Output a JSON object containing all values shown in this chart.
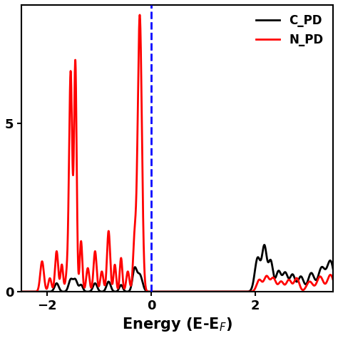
{
  "title": "",
  "xlabel": "Energy (E-E$_F$)",
  "ylabel": "",
  "xlim": [
    -2.5,
    3.5
  ],
  "ylim": [
    0,
    8.5
  ],
  "yticks": [
    0,
    5
  ],
  "xticks": [
    -2,
    0,
    2
  ],
  "vline_x": 0,
  "vline_color": "blue",
  "vline_style": "--",
  "c_pdos_color": "black",
  "n_pdos_color": "red",
  "c_label": "C_PD",
  "n_label": "N_PD",
  "legend_loc": "upper right",
  "linewidth": 2.0,
  "n_peaks_left": [
    {
      "mu": -2.1,
      "sigma": 0.035,
      "amp": 0.9
    },
    {
      "mu": -1.95,
      "sigma": 0.03,
      "amp": 0.4
    },
    {
      "mu": -1.82,
      "sigma": 0.03,
      "amp": 1.2
    },
    {
      "mu": -1.72,
      "sigma": 0.025,
      "amp": 0.8
    },
    {
      "mu": -1.62,
      "sigma": 0.03,
      "amp": 0.5
    },
    {
      "mu": -1.55,
      "sigma": 0.03,
      "amp": 6.5
    },
    {
      "mu": -1.46,
      "sigma": 0.025,
      "amp": 6.8
    },
    {
      "mu": -1.35,
      "sigma": 0.025,
      "amp": 1.5
    },
    {
      "mu": -1.22,
      "sigma": 0.03,
      "amp": 0.7
    },
    {
      "mu": -1.08,
      "sigma": 0.03,
      "amp": 1.2
    },
    {
      "mu": -0.95,
      "sigma": 0.03,
      "amp": 0.6
    },
    {
      "mu": -0.82,
      "sigma": 0.03,
      "amp": 1.8
    },
    {
      "mu": -0.7,
      "sigma": 0.025,
      "amp": 0.8
    },
    {
      "mu": -0.58,
      "sigma": 0.025,
      "amp": 1.0
    },
    {
      "mu": -0.45,
      "sigma": 0.03,
      "amp": 0.6
    },
    {
      "mu": -0.32,
      "sigma": 0.03,
      "amp": 1.5
    },
    {
      "mu": -0.22,
      "sigma": 0.04,
      "amp": 8.2
    }
  ],
  "n_peaks_right": [
    {
      "mu": 2.08,
      "sigma": 0.05,
      "amp": 0.35
    },
    {
      "mu": 2.22,
      "sigma": 0.05,
      "amp": 0.45
    },
    {
      "mu": 2.35,
      "sigma": 0.05,
      "amp": 0.4
    },
    {
      "mu": 2.5,
      "sigma": 0.05,
      "amp": 0.3
    },
    {
      "mu": 2.65,
      "sigma": 0.05,
      "amp": 0.35
    },
    {
      "mu": 2.8,
      "sigma": 0.05,
      "amp": 0.4
    },
    {
      "mu": 3.05,
      "sigma": 0.06,
      "amp": 0.3
    },
    {
      "mu": 3.25,
      "sigma": 0.06,
      "amp": 0.45
    },
    {
      "mu": 3.45,
      "sigma": 0.06,
      "amp": 0.5
    }
  ],
  "c_peaks_left": [
    {
      "mu": -1.82,
      "sigma": 0.04,
      "amp": 0.25
    },
    {
      "mu": -1.55,
      "sigma": 0.04,
      "amp": 0.35
    },
    {
      "mu": -1.46,
      "sigma": 0.04,
      "amp": 0.35
    },
    {
      "mu": -1.35,
      "sigma": 0.035,
      "amp": 0.2
    },
    {
      "mu": -1.08,
      "sigma": 0.04,
      "amp": 0.25
    },
    {
      "mu": -0.82,
      "sigma": 0.04,
      "amp": 0.3
    },
    {
      "mu": -0.58,
      "sigma": 0.035,
      "amp": 0.2
    },
    {
      "mu": -0.32,
      "sigma": 0.04,
      "amp": 0.65
    },
    {
      "mu": -0.22,
      "sigma": 0.05,
      "amp": 0.5
    }
  ],
  "c_peaks_right": [
    {
      "mu": 2.05,
      "sigma": 0.055,
      "amp": 1.0
    },
    {
      "mu": 2.18,
      "sigma": 0.045,
      "amp": 1.3
    },
    {
      "mu": 2.3,
      "sigma": 0.045,
      "amp": 0.9
    },
    {
      "mu": 2.45,
      "sigma": 0.05,
      "amp": 0.6
    },
    {
      "mu": 2.58,
      "sigma": 0.05,
      "amp": 0.55
    },
    {
      "mu": 2.72,
      "sigma": 0.05,
      "amp": 0.5
    },
    {
      "mu": 2.88,
      "sigma": 0.055,
      "amp": 0.45
    },
    {
      "mu": 3.08,
      "sigma": 0.06,
      "amp": 0.55
    },
    {
      "mu": 3.28,
      "sigma": 0.065,
      "amp": 0.7
    },
    {
      "mu": 3.45,
      "sigma": 0.065,
      "amp": 0.9
    }
  ]
}
